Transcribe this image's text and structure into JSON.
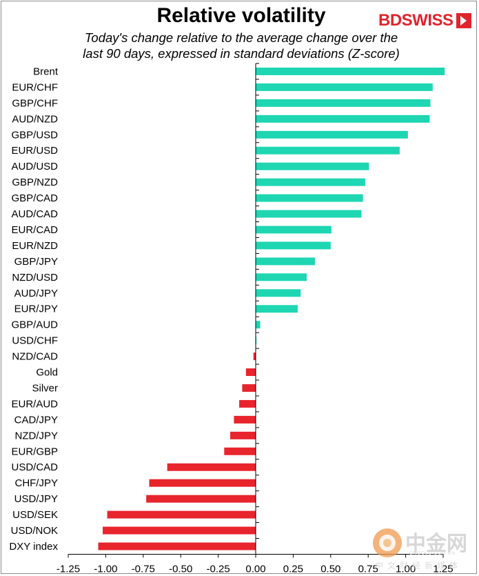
{
  "title": "Relative volatility",
  "subtitle_line1": "Today's change relative to the  average change over the",
  "subtitle_line2": "last 90 days, expressed in standard deviations (Z-score)",
  "logo_text": "BDSWISS",
  "watermark": {
    "name": "中金网",
    "url": "CNGOLD.COM.CN",
    "tagline": "中文财经新媒体"
  },
  "colors": {
    "positive": "#1ed6b2",
    "negative": "#e8242d",
    "axis": "#000000",
    "logo": "#e0242d"
  },
  "chart_data": {
    "type": "bar",
    "orientation": "horizontal",
    "title": "Relative volatility",
    "xlim": [
      -1.25,
      1.25
    ],
    "xticks": [
      "-1.25",
      "-1.00",
      "-0.75",
      "-0.50",
      "-0.25",
      "0.00",
      "0.25",
      "0.50",
      "0.75",
      "1.00",
      "1.25"
    ],
    "categories": [
      "Brent",
      "EUR/CHF",
      "GBP/CHF",
      "AUD/NZD",
      "GBP/USD",
      "EUR/USD",
      "AUD/USD",
      "GBP/NZD",
      "GBP/CAD",
      "AUD/CAD",
      "EUR/CAD",
      "EUR/NZD",
      "GBP/JPY",
      "NZD/USD",
      "AUD/JPY",
      "EUR/JPY",
      "GBP/AUD",
      "USD/CHF",
      "NZD/CAD",
      "Gold",
      "Silver",
      "EUR/AUD",
      "CAD/JPY",
      "NZD/JPY",
      "EUR/GBP",
      "USD/CAD",
      "CHF/JPY",
      "USD/JPY",
      "USD/SEK",
      "USD/NOK",
      "DXY index"
    ],
    "values": [
      1.26,
      1.18,
      1.165,
      1.16,
      1.015,
      0.96,
      0.755,
      0.73,
      0.715,
      0.705,
      0.505,
      0.5,
      0.395,
      0.34,
      0.3,
      0.28,
      0.03,
      0.005,
      -0.015,
      -0.065,
      -0.09,
      -0.11,
      -0.145,
      -0.17,
      -0.21,
      -0.59,
      -0.71,
      -0.73,
      -0.99,
      -1.02,
      -1.05
    ],
    "grid": false,
    "legend": "none"
  }
}
